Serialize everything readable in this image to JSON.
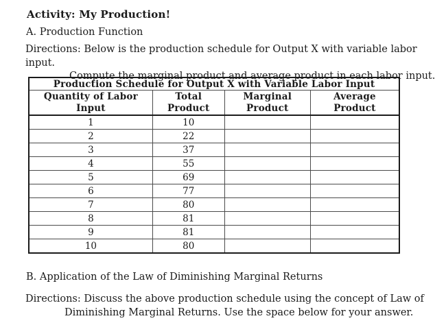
{
  "doc": {
    "title": "Activity: My Production!",
    "section_a_heading": "A. Production Function",
    "directions_a_line1": "Directions: Below is the production schedule for Output X with variable labor input.",
    "directions_a_line2": "Compute the marginal product and average product in each labor input.",
    "section_b_heading": "B. Application of the Law of Diminishing Marginal Returns",
    "directions_b_line1": "Directions: Discuss the above production schedule using the concept of Law of",
    "directions_b_line2": "Diminishing Marginal Returns. Use the space below for your answer."
  },
  "table": {
    "title": "Production Schedule for Output X with Variable Labor Input",
    "columns": [
      "Quantity of Labor\nInput",
      "Total\nProduct",
      "Marginal\nProduct",
      "Average\nProduct"
    ],
    "rows": [
      {
        "quantity": "1",
        "total": "10",
        "marginal": "",
        "average": ""
      },
      {
        "quantity": "2",
        "total": "22",
        "marginal": "",
        "average": ""
      },
      {
        "quantity": "3",
        "total": "37",
        "marginal": "",
        "average": ""
      },
      {
        "quantity": "4",
        "total": "55",
        "marginal": "",
        "average": ""
      },
      {
        "quantity": "5",
        "total": "69",
        "marginal": "",
        "average": ""
      },
      {
        "quantity": "6",
        "total": "77",
        "marginal": "",
        "average": ""
      },
      {
        "quantity": "7",
        "total": "80",
        "marginal": "",
        "average": ""
      },
      {
        "quantity": "8",
        "total": "81",
        "marginal": "",
        "average": ""
      },
      {
        "quantity": "9",
        "total": "81",
        "marginal": "",
        "average": ""
      },
      {
        "quantity": "10",
        "total": "80",
        "marginal": "",
        "average": ""
      }
    ]
  },
  "colors": {
    "text": "#1a1a1a",
    "background": "#ffffff",
    "table_border": "#1a1a1a"
  }
}
